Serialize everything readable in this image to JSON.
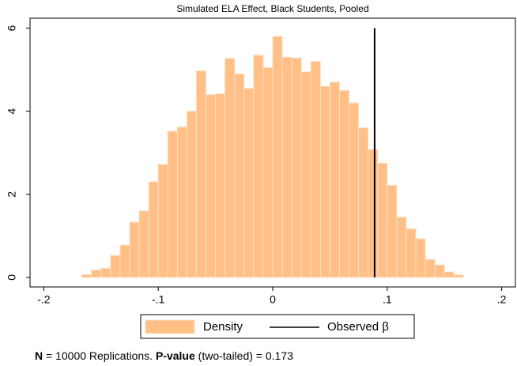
{
  "chart_data": {
    "type": "histogram",
    "title": "Simulated ELA Effect, Black Students, Pooled",
    "bins": [
      -0.1667,
      -0.1583,
      -0.15,
      -0.1417,
      -0.1333,
      -0.125,
      -0.1167,
      -0.1083,
      -0.1,
      -0.0917,
      -0.0833,
      -0.075,
      -0.0667,
      -0.0583,
      -0.05,
      -0.0417,
      -0.0333,
      -0.025,
      -0.0167,
      -0.0083,
      0,
      0.0083,
      0.0167,
      0.025,
      0.0333,
      0.0417,
      0.05,
      0.0583,
      0.0667,
      0.075,
      0.0833,
      0.0917,
      0.1,
      0.1083,
      0.1167,
      0.125,
      0.1333,
      0.1417,
      0.15,
      0.1583,
      0.1667
    ],
    "series": [
      {
        "name": "Density",
        "color": "#ffbf86",
        "values": [
          0.07,
          0.18,
          0.22,
          0.53,
          0.78,
          1.33,
          1.6,
          2.3,
          2.72,
          3.52,
          3.62,
          4.0,
          4.97,
          4.4,
          4.42,
          5.27,
          4.9,
          4.55,
          5.35,
          5.05,
          5.8,
          5.3,
          5.28,
          4.95,
          5.2,
          4.6,
          4.7,
          4.5,
          4.2,
          3.6,
          3.08,
          2.75,
          2.22,
          1.45,
          1.17,
          0.93,
          0.43,
          0.3,
          0.13,
          0.06
        ]
      }
    ],
    "reference_line": {
      "name": "Observed β",
      "color": "#000000",
      "x": 0.089,
      "y": [
        0,
        6
      ]
    },
    "xlim": [
      -0.212,
      0.212
    ],
    "ylim": [
      -0.23,
      6.24
    ],
    "xticks": [
      {
        "value": -0.2,
        "label": "-.2"
      },
      {
        "value": -0.1,
        "label": "-.1"
      },
      0,
      {
        "value": 0.1,
        "label": ".1"
      },
      {
        "value": 0.2,
        "label": ".2"
      }
    ],
    "yticks": [
      0,
      2,
      4,
      6
    ],
    "note": [
      {
        "text": "N",
        "bold": true
      },
      {
        "text": " = 10000 Replications. ",
        "bold": false
      },
      {
        "text": "P-value",
        "bold": true
      },
      {
        "text": " (two-tailed) = 0.173",
        "bold": false
      }
    ]
  }
}
